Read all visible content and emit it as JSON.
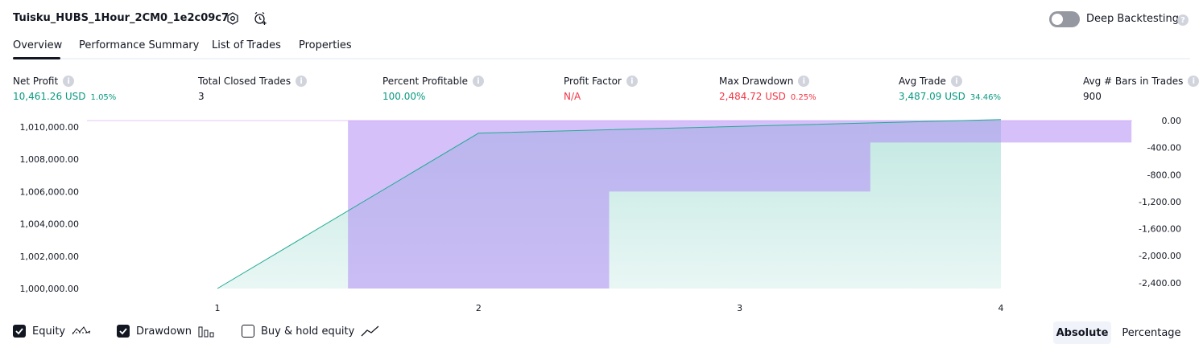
{
  "header": {
    "strategy_title": "Tuisku_HUBS_1Hour_2CM0_1e2c09c7",
    "settings_icon": "settings-hexagon-icon",
    "add_alert_icon": "alarm-clock-plus-icon",
    "deep_backtesting_label": "Deep Backtesting",
    "deep_backtesting_enabled": false
  },
  "tabs": [
    {
      "label": "Overview",
      "active": true
    },
    {
      "label": "Performance Summary",
      "active": false
    },
    {
      "label": "List of Trades",
      "active": false
    },
    {
      "label": "Properties",
      "active": false
    }
  ],
  "metrics": [
    {
      "label": "Net Profit",
      "value": "10,461.26 USD",
      "pct": "1.05%",
      "color": "#089981"
    },
    {
      "label": "Total Closed Trades",
      "value": "3",
      "pct": "",
      "color": "#131722"
    },
    {
      "label": "Percent Profitable",
      "value": "100.00%",
      "pct": "",
      "color": "#089981"
    },
    {
      "label": "Profit Factor",
      "value": "N/A",
      "pct": "",
      "color": "#f23645"
    },
    {
      "label": "Max Drawdown",
      "value": "2,484.72 USD",
      "pct": "0.25%",
      "color": "#f23645"
    },
    {
      "label": "Avg Trade",
      "value": "3,487.09 USD",
      "pct": "34.46%",
      "color": "#089981"
    },
    {
      "label": "Avg # Bars in Trades",
      "value": "900",
      "pct": "",
      "color": "#131722"
    }
  ],
  "chart_data": {
    "type": "area",
    "x_ticks": [
      "1",
      "2",
      "3",
      "4"
    ],
    "equity": {
      "x": [
        1,
        2,
        4
      ],
      "y": [
        1000000,
        1009620,
        1010461.26
      ]
    },
    "drawdown_bars": [
      {
        "from": 1.5,
        "to": 2.5,
        "value": -2484.72
      },
      {
        "from": 2.5,
        "to": 3.5,
        "value": -1050
      },
      {
        "from": 3.5,
        "to": 4.5,
        "value": -325
      }
    ],
    "left_axis": {
      "ticks": [
        "1,000,000.00",
        "1,002,000.00",
        "1,004,000.00",
        "1,006,000.00",
        "1,008,000.00",
        "1,010,000.00"
      ],
      "min": 1000000,
      "max": 1010400
    },
    "right_axis": {
      "ticks": [
        "0.00",
        "-400.00",
        "-800.00",
        "-1,200.00",
        "-1,600.00",
        "-2,000.00",
        "-2,400.00"
      ],
      "min": -2484.72,
      "max": 0
    },
    "colors": {
      "equity_line": "#22ab94",
      "equity_fill": "#22ab94",
      "drawdown_fill": "#b28cf5"
    }
  },
  "legend": [
    {
      "label": "Equity",
      "checked": true,
      "icon": "equity-line-icon"
    },
    {
      "label": "Drawdown",
      "checked": true,
      "icon": "drawdown-bars-icon"
    },
    {
      "label": "Buy & hold equity",
      "checked": false,
      "icon": "trend-line-icon"
    }
  ],
  "view_mode": {
    "absolute_label": "Absolute",
    "percentage_label": "Percentage",
    "selected": "Absolute"
  }
}
